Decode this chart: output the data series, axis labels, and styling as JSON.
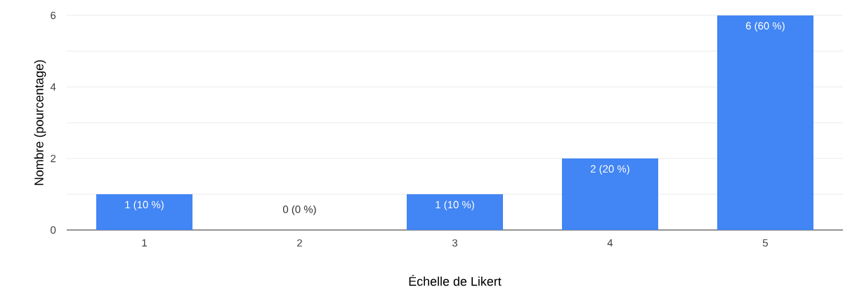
{
  "chart_data": {
    "type": "bar",
    "xlabel": "Échelle de Likert",
    "ylabel": "Nombre (pourcentage)",
    "categories": [
      "1",
      "2",
      "3",
      "4",
      "5"
    ],
    "values": [
      1,
      0,
      1,
      2,
      6
    ],
    "value_labels": [
      "1 (10 %)",
      "0 (0 %)",
      "1 (10 %)",
      "2 (20 %)",
      "6 (60 %)"
    ],
    "color": "#4285f4",
    "ylim": [
      0,
      6
    ],
    "yticks": [
      0,
      {
        "value": 1,
        "label": null
      },
      2,
      {
        "value": 3,
        "label": null
      },
      4,
      {
        "value": 5,
        "label": null
      },
      6
    ],
    "grid": "y"
  }
}
